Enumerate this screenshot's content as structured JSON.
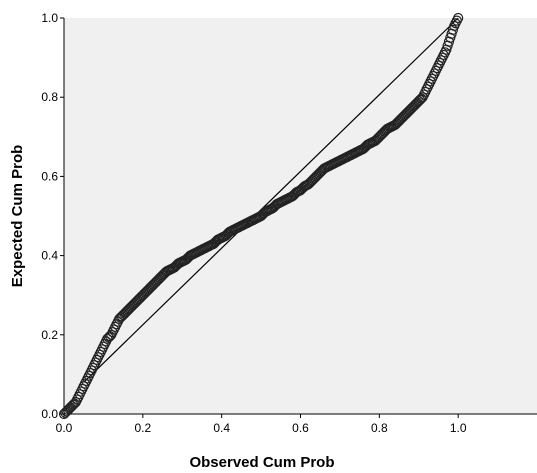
{
  "chart_data": {
    "type": "scatter",
    "title": "",
    "xlabel": "Observed Cum Prob",
    "ylabel": "Expected Cum Prob",
    "xlim": [
      0,
      1.2
    ],
    "ylim": [
      0,
      1.0
    ],
    "xticks": [
      "0.0",
      "0.2",
      "0.4",
      "0.6",
      "0.8",
      "1.0"
    ],
    "xtick_values": [
      0,
      0.2,
      0.4,
      0.6,
      0.8,
      1.0
    ],
    "yticks": [
      "0.0",
      "0.2",
      "0.4",
      "0.6",
      "0.8",
      "1.0"
    ],
    "ytick_values": [
      0,
      0.2,
      0.4,
      0.6,
      0.8,
      1.0
    ],
    "grid": false,
    "colors": {
      "plot_background": "#f0f0f0",
      "points": "#222222",
      "reference_line": "#000000"
    },
    "reference_line": {
      "from": [
        0.05,
        0.08
      ],
      "to": [
        1.0,
        1.0
      ]
    },
    "points": {
      "x": [
        0.0,
        0.01,
        0.02,
        0.03,
        0.04,
        0.05,
        0.06,
        0.07,
        0.08,
        0.09,
        0.1,
        0.11,
        0.12,
        0.13,
        0.14,
        0.15,
        0.16,
        0.17,
        0.18,
        0.19,
        0.2,
        0.21,
        0.22,
        0.23,
        0.24,
        0.25,
        0.26,
        0.27,
        0.28,
        0.29,
        0.3,
        0.31,
        0.32,
        0.33,
        0.34,
        0.35,
        0.36,
        0.37,
        0.38,
        0.39,
        0.4,
        0.41,
        0.42,
        0.43,
        0.44,
        0.45,
        0.46,
        0.47,
        0.48,
        0.49,
        0.5,
        0.51,
        0.52,
        0.53,
        0.54,
        0.55,
        0.56,
        0.57,
        0.58,
        0.59,
        0.6,
        0.61,
        0.62,
        0.63,
        0.64,
        0.65,
        0.66,
        0.67,
        0.68,
        0.69,
        0.7,
        0.71,
        0.72,
        0.73,
        0.74,
        0.75,
        0.76,
        0.77,
        0.78,
        0.79,
        0.8,
        0.81,
        0.82,
        0.83,
        0.84,
        0.85,
        0.86,
        0.87,
        0.88,
        0.89,
        0.9,
        0.91,
        0.92,
        0.93,
        0.94,
        0.95,
        0.96,
        0.97,
        0.98,
        0.99,
        1.0
      ],
      "y": [
        0.0,
        0.01,
        0.02,
        0.03,
        0.05,
        0.07,
        0.09,
        0.11,
        0.13,
        0.15,
        0.17,
        0.19,
        0.2,
        0.22,
        0.24,
        0.25,
        0.26,
        0.27,
        0.28,
        0.29,
        0.3,
        0.31,
        0.32,
        0.33,
        0.34,
        0.35,
        0.36,
        0.365,
        0.37,
        0.38,
        0.385,
        0.39,
        0.4,
        0.405,
        0.41,
        0.415,
        0.42,
        0.425,
        0.43,
        0.44,
        0.445,
        0.45,
        0.46,
        0.465,
        0.47,
        0.475,
        0.48,
        0.485,
        0.49,
        0.495,
        0.5,
        0.51,
        0.515,
        0.52,
        0.53,
        0.535,
        0.54,
        0.545,
        0.55,
        0.56,
        0.565,
        0.575,
        0.58,
        0.59,
        0.6,
        0.61,
        0.62,
        0.625,
        0.63,
        0.635,
        0.64,
        0.645,
        0.65,
        0.655,
        0.66,
        0.665,
        0.67,
        0.68,
        0.685,
        0.69,
        0.7,
        0.71,
        0.72,
        0.725,
        0.73,
        0.74,
        0.75,
        0.76,
        0.77,
        0.78,
        0.79,
        0.8,
        0.82,
        0.84,
        0.86,
        0.88,
        0.9,
        0.92,
        0.95,
        0.98,
        1.0
      ]
    }
  }
}
